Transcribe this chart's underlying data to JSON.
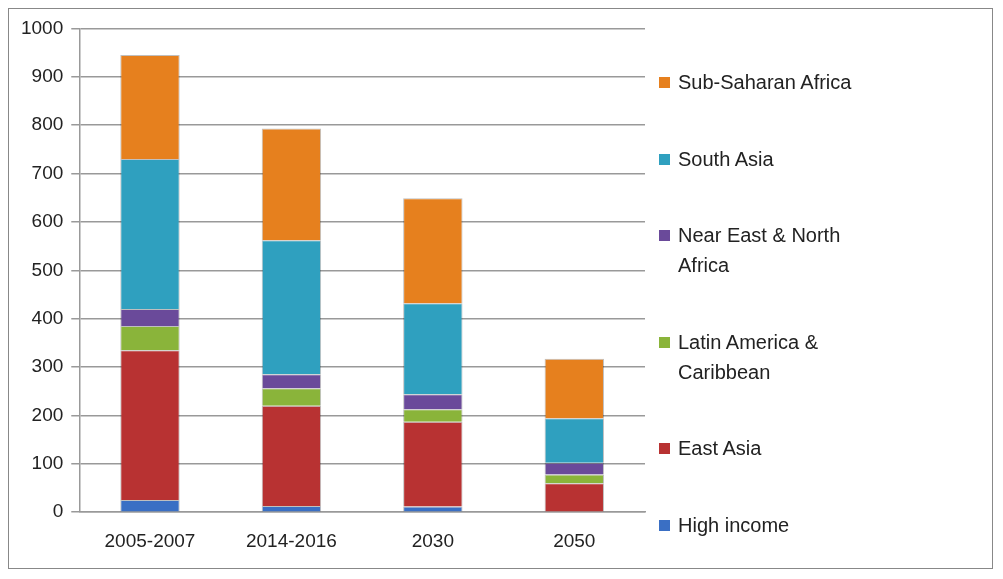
{
  "chart_data": {
    "type": "bar",
    "stacked": true,
    "categories": [
      "2005-2007",
      "2014-2016",
      "2030",
      "2050"
    ],
    "series": [
      {
        "name": "High income",
        "color": "#3a6fc4",
        "values": [
          25,
          13,
          12,
          0
        ]
      },
      {
        "name": "East Asia",
        "color": "#b83232",
        "values": [
          310,
          207,
          175,
          60
        ]
      },
      {
        "name": "Latin America & Caribbean",
        "color": "#8ab43a",
        "values": [
          50,
          36,
          26,
          18
        ]
      },
      {
        "name": "Near East & North Africa",
        "color": "#6a4a9a",
        "values": [
          35,
          29,
          31,
          24
        ]
      },
      {
        "name": "South Asia",
        "color": "#2fa0bf",
        "values": [
          310,
          277,
          188,
          92
        ]
      },
      {
        "name": "Sub-Saharan Africa",
        "color": "#e6801e",
        "values": [
          215,
          231,
          217,
          123
        ]
      }
    ],
    "ylim": [
      0,
      1000
    ],
    "yticks": [
      0,
      100,
      200,
      300,
      400,
      500,
      600,
      700,
      800,
      900,
      1000
    ],
    "grid": "y",
    "legend": "right"
  }
}
